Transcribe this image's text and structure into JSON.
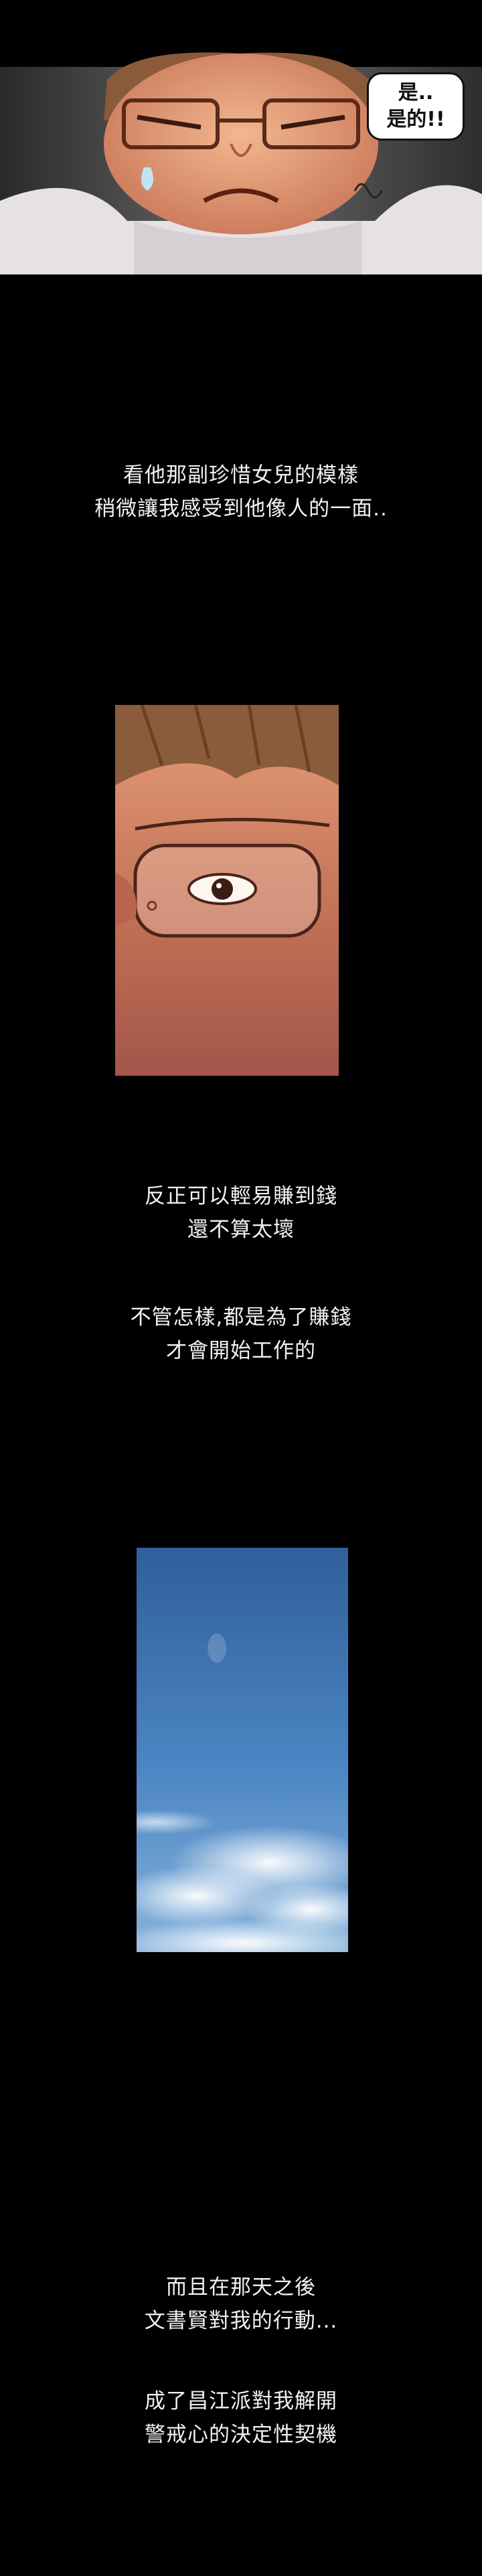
{
  "panels": {
    "top": {
      "speech_lines": [
        "是..",
        "是的!!"
      ]
    },
    "eyes_closeup": {},
    "sky": {}
  },
  "narration": {
    "block1": [
      "看他那副珍惜女兒的模樣",
      "稍微讓我感受到他像人的一面.."
    ],
    "block2": [
      "反正可以輕易賺到錢",
      "還不算太壞"
    ],
    "block3": [
      "不管怎樣,都是為了賺錢",
      "才會開始工作的"
    ],
    "block4": [
      "而且在那天之後",
      "文書賢對我的行動..."
    ],
    "block5": [
      "成了昌江派對我解開",
      "警戒心的決定性契機"
    ]
  }
}
